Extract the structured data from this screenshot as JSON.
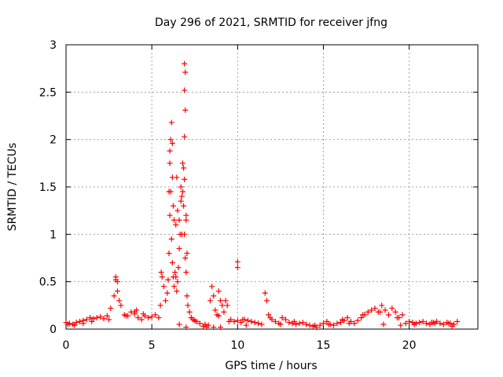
{
  "chart_data": {
    "type": "scatter",
    "title": "Day 296 of 2021, SRMTID for receiver jfng",
    "xlabel": "GPS time / hours",
    "ylabel": "SRMTID / TECUs",
    "xlim": [
      0,
      24
    ],
    "ylim": [
      0,
      3
    ],
    "xticks": [
      0,
      5,
      10,
      15,
      20
    ],
    "xtick_labels": [
      "0",
      "5",
      "10",
      "15",
      "20"
    ],
    "yticks": [
      0,
      0.5,
      1,
      1.5,
      2,
      2.5,
      3
    ],
    "ytick_labels": [
      "0",
      "0.5",
      "1",
      "1.5",
      "2",
      "2.5",
      "3"
    ],
    "grid": true,
    "marker": "plus",
    "color": "#ff0000",
    "series": [
      {
        "name": "SRMTID",
        "x": [
          0.0,
          0.2,
          0.4,
          0.6,
          0.8,
          1.0,
          1.2,
          1.4,
          1.6,
          1.8,
          2.0,
          2.2,
          2.4,
          2.6,
          2.8,
          2.9,
          3.0,
          3.1,
          3.2,
          3.4,
          3.6,
          3.8,
          4.0,
          4.2,
          4.4,
          4.6,
          4.8,
          5.0,
          5.2,
          5.4,
          5.5,
          5.6,
          5.7,
          5.8,
          5.9,
          5.95,
          6.0,
          6.05,
          6.1,
          6.15,
          6.2,
          6.25,
          6.3,
          6.35,
          6.4,
          6.45,
          6.5,
          6.55,
          6.6,
          6.65,
          6.7,
          6.75,
          6.8,
          6.85,
          6.9,
          6.95,
          7.0,
          7.05,
          7.1,
          7.2,
          7.3,
          7.4,
          7.6,
          7.8,
          8.0,
          8.2,
          8.4,
          8.5,
          8.6,
          8.7,
          8.8,
          8.9,
          9.0,
          9.1,
          9.2,
          9.3,
          9.4,
          9.6,
          9.8,
          10.0,
          10.2,
          10.4,
          10.6,
          10.8,
          11.0,
          11.2,
          11.4,
          11.6,
          11.7,
          11.8,
          12.0,
          12.2,
          12.4,
          12.6,
          12.8,
          13.0,
          13.2,
          13.4,
          13.6,
          13.8,
          14.0,
          14.2,
          14.4,
          14.6,
          14.8,
          15.0,
          15.2,
          15.4,
          15.6,
          15.8,
          16.0,
          16.2,
          16.4,
          16.6,
          16.8,
          17.0,
          17.2,
          17.4,
          17.6,
          17.8,
          18.0,
          18.2,
          18.4,
          18.6,
          18.8,
          19.0,
          19.2,
          19.4,
          19.6,
          19.8,
          20.0,
          20.2,
          20.4,
          20.6,
          20.8,
          21.0,
          21.2,
          21.4,
          21.6,
          21.8,
          22.0,
          22.2,
          22.4,
          22.6,
          22.8,
          2.9,
          3.0,
          6.0,
          6.05,
          6.1,
          6.15,
          6.2,
          6.25,
          6.3,
          6.85,
          6.9,
          6.95,
          6.9,
          6.95,
          6.9,
          10.0,
          10.0,
          0.1,
          0.5,
          1.0,
          1.5,
          2.5,
          3.5,
          4.5,
          6.6,
          7.0,
          8.6,
          9.0,
          10.5,
          12.5,
          14.5,
          16.5,
          18.5,
          19.5,
          21.5,
          22.5,
          6.4,
          6.5,
          6.75,
          7.0,
          7.05,
          5.55,
          6.05,
          6.2,
          6.45,
          6.6,
          6.7,
          6.8,
          6.9,
          7.0,
          4.0,
          4.1,
          7.3,
          7.5,
          8.1,
          8.3,
          8.9,
          9.5,
          10.3,
          11.9,
          13.3,
          15.3,
          16.1,
          17.3,
          18.3,
          19.3,
          20.3,
          21.3,
          22.3
        ],
        "y": [
          0.07,
          0.06,
          0.05,
          0.07,
          0.08,
          0.09,
          0.1,
          0.12,
          0.11,
          0.12,
          0.13,
          0.11,
          0.14,
          0.22,
          0.35,
          0.52,
          0.4,
          0.3,
          0.25,
          0.15,
          0.14,
          0.18,
          0.16,
          0.12,
          0.1,
          0.14,
          0.12,
          0.13,
          0.15,
          0.12,
          0.25,
          0.55,
          0.45,
          0.3,
          0.38,
          0.52,
          0.8,
          1.2,
          1.45,
          0.95,
          0.7,
          0.55,
          0.45,
          0.6,
          0.55,
          0.4,
          0.5,
          0.65,
          0.85,
          1.0,
          1.35,
          1.4,
          1.45,
          1.3,
          1.0,
          0.75,
          0.6,
          0.35,
          0.25,
          0.18,
          0.12,
          0.1,
          0.08,
          0.06,
          0.03,
          0.02,
          0.3,
          0.45,
          0.35,
          0.2,
          0.15,
          0.4,
          0.3,
          0.25,
          0.18,
          0.3,
          0.25,
          0.1,
          0.08,
          0.09,
          0.07,
          0.1,
          0.09,
          0.08,
          0.07,
          0.06,
          0.05,
          0.38,
          0.3,
          0.15,
          0.1,
          0.08,
          0.06,
          0.12,
          0.1,
          0.07,
          0.06,
          0.05,
          0.06,
          0.07,
          0.05,
          0.04,
          0.03,
          0.02,
          0.04,
          0.06,
          0.08,
          0.05,
          0.04,
          0.06,
          0.07,
          0.09,
          0.12,
          0.08,
          0.06,
          0.09,
          0.12,
          0.15,
          0.18,
          0.2,
          0.22,
          0.18,
          0.25,
          0.2,
          0.15,
          0.22,
          0.18,
          0.12,
          0.15,
          0.06,
          0.08,
          0.07,
          0.06,
          0.07,
          0.08,
          0.06,
          0.05,
          0.07,
          0.08,
          0.06,
          0.05,
          0.07,
          0.06,
          0.05,
          0.08,
          0.55,
          0.5,
          1.45,
          1.75,
          2.0,
          2.18,
          1.6,
          1.3,
          1.15,
          1.7,
          2.03,
          2.31,
          2.52,
          2.71,
          2.8,
          0.71,
          0.65,
          0.05,
          0.04,
          0.06,
          0.08,
          0.1,
          0.14,
          0.16,
          0.05,
          0.02,
          0.02,
          0.02,
          0.04,
          0.05,
          0.04,
          0.06,
          0.05,
          0.04,
          0.06,
          0.03,
          1.1,
          1.25,
          1.0,
          1.15,
          0.8,
          0.6,
          1.88,
          1.96,
          1.6,
          1.15,
          1.5,
          1.75,
          1.58,
          1.2,
          0.18,
          0.2,
          0.12,
          0.09,
          0.05,
          0.04,
          0.14,
          0.08,
          0.1,
          0.12,
          0.08,
          0.05,
          0.1,
          0.15,
          0.18,
          0.12,
          0.05,
          0.07,
          0.06
        ]
      }
    ]
  }
}
